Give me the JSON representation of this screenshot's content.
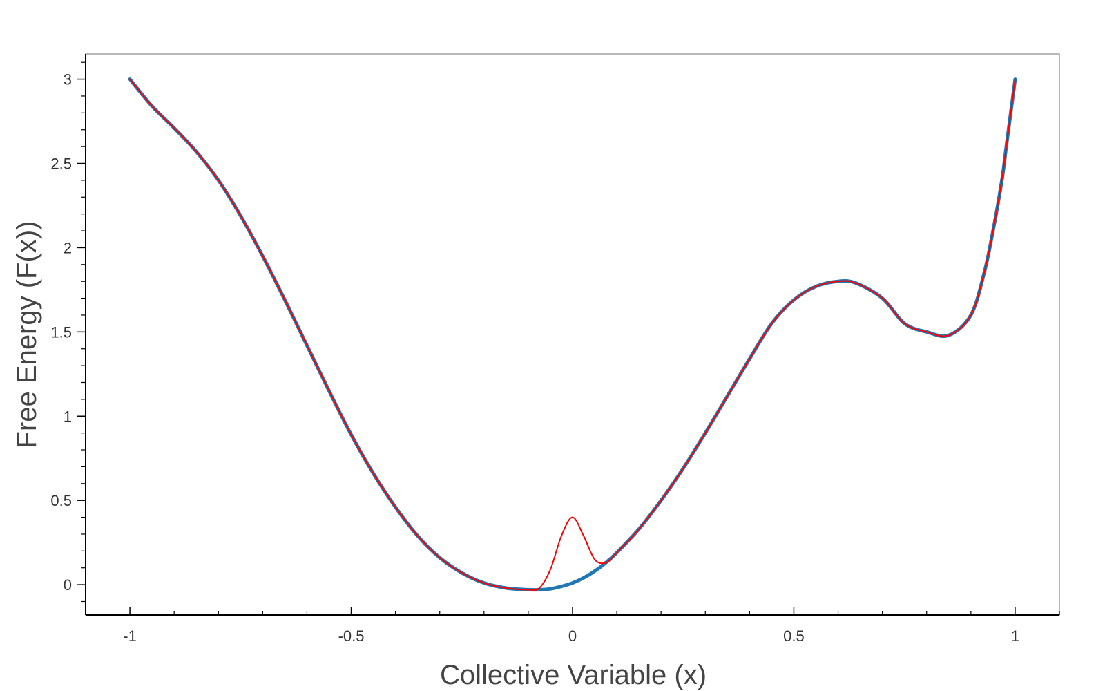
{
  "chart_data": {
    "type": "line",
    "title": "",
    "xlabel": "Collective Variable (x)",
    "ylabel": "Free Energy (F(x))",
    "xlim": [
      -1.1,
      1.1
    ],
    "ylim": [
      -0.18,
      3.15
    ],
    "grid": false,
    "x_ticks": [
      -1,
      -0.5,
      0,
      0.5,
      1
    ],
    "x_tick_labels": [
      "-1",
      "-0.5",
      "0",
      "0.5",
      "1"
    ],
    "y_ticks": [
      0,
      0.5,
      1,
      1.5,
      2,
      2.5,
      3
    ],
    "y_tick_labels": [
      "0",
      "0.5",
      "1",
      "1.5",
      "2",
      "2.5",
      "3"
    ],
    "series": [
      {
        "color": "#1f77b4",
        "line_width": 5,
        "x": [
          -1.0,
          -0.95,
          -0.9,
          -0.85,
          -0.8,
          -0.75,
          -0.7,
          -0.65,
          -0.6,
          -0.55,
          -0.5,
          -0.45,
          -0.4,
          -0.35,
          -0.3,
          -0.25,
          -0.2,
          -0.15,
          -0.1,
          -0.075,
          -0.05,
          -0.025,
          0.0,
          0.025,
          0.05,
          0.075,
          0.1,
          0.15,
          0.2,
          0.25,
          0.3,
          0.35,
          0.4,
          0.45,
          0.5,
          0.55,
          0.6,
          0.64,
          0.7,
          0.75,
          0.8,
          0.85,
          0.9,
          0.93,
          0.95,
          0.97,
          0.98,
          0.99,
          1.0
        ],
        "y": [
          3.0,
          2.84,
          2.71,
          2.57,
          2.4,
          2.19,
          1.95,
          1.69,
          1.42,
          1.15,
          0.89,
          0.66,
          0.46,
          0.29,
          0.16,
          0.07,
          0.01,
          -0.02,
          -0.03,
          -0.03,
          -0.025,
          -0.01,
          0.01,
          0.04,
          0.08,
          0.13,
          0.19,
          0.33,
          0.5,
          0.69,
          0.9,
          1.12,
          1.34,
          1.55,
          1.69,
          1.77,
          1.8,
          1.79,
          1.7,
          1.55,
          1.5,
          1.48,
          1.6,
          1.85,
          2.1,
          2.4,
          2.6,
          2.8,
          3.0
        ]
      },
      {
        "color": "#ff0000",
        "line_width": 2,
        "x": [
          -1.0,
          -0.95,
          -0.9,
          -0.85,
          -0.8,
          -0.75,
          -0.7,
          -0.65,
          -0.6,
          -0.55,
          -0.5,
          -0.45,
          -0.4,
          -0.35,
          -0.3,
          -0.25,
          -0.2,
          -0.15,
          -0.1,
          -0.075,
          -0.05,
          -0.025,
          0.0,
          0.025,
          0.05,
          0.075,
          0.1,
          0.15,
          0.2,
          0.25,
          0.3,
          0.35,
          0.4,
          0.45,
          0.5,
          0.55,
          0.6,
          0.64,
          0.7,
          0.75,
          0.8,
          0.85,
          0.9,
          0.93,
          0.95,
          0.97,
          0.98,
          0.99,
          1.0
        ],
        "y": [
          3.0,
          2.84,
          2.71,
          2.57,
          2.4,
          2.19,
          1.95,
          1.69,
          1.42,
          1.15,
          0.89,
          0.66,
          0.46,
          0.29,
          0.16,
          0.07,
          0.01,
          -0.02,
          -0.03,
          -0.02,
          0.09,
          0.29,
          0.4,
          0.29,
          0.15,
          0.13,
          0.19,
          0.33,
          0.5,
          0.69,
          0.9,
          1.12,
          1.34,
          1.55,
          1.69,
          1.77,
          1.8,
          1.79,
          1.7,
          1.55,
          1.5,
          1.48,
          1.6,
          1.85,
          2.1,
          2.4,
          2.6,
          2.8,
          3.0
        ]
      }
    ]
  }
}
